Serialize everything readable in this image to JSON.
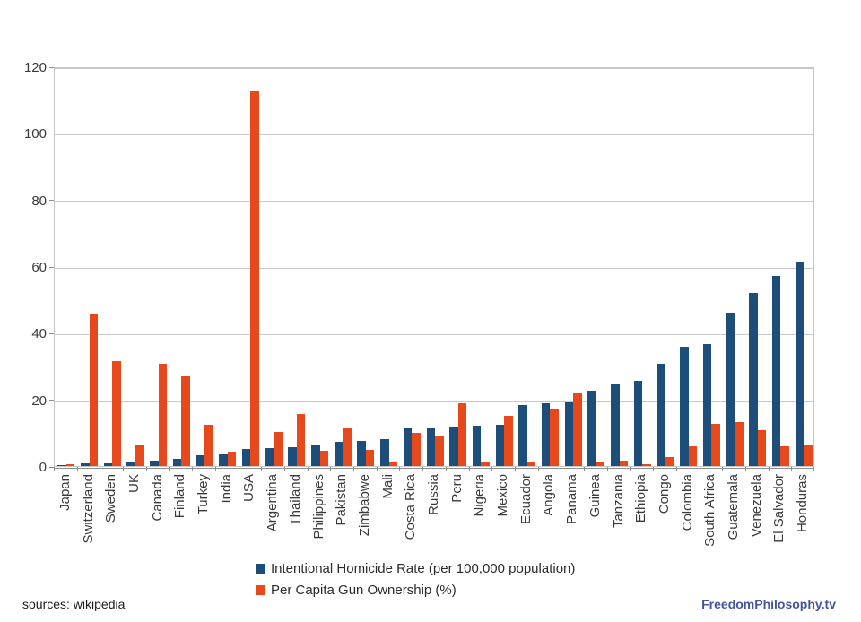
{
  "chart_data": {
    "type": "bar",
    "title": "",
    "xlabel": "",
    "ylabel": "",
    "ylim": [
      0,
      120
    ],
    "yticks": [
      0,
      20,
      40,
      60,
      80,
      100,
      120
    ],
    "grid": "horizontal",
    "legend_position": "bottom-center",
    "categories": [
      "Japan",
      "Switzerland",
      "Sweden",
      "UK",
      "Canada",
      "Finland",
      "Turkey",
      "India",
      "USA",
      "Argentina",
      "Thailand",
      "Philippines",
      "Pakistan",
      "Zimbabwe",
      "Mali",
      "Costa Rica",
      "Russia",
      "Peru",
      "Nigeria",
      "Mexico",
      "Ecuador",
      "Angola",
      "Panama",
      "Guinea",
      "Tanzania",
      "Ethiopia",
      "Congo",
      "Colombia",
      "South Africa",
      "Guatemala",
      "Venezuela",
      "El Salvador",
      "Honduras"
    ],
    "series": [
      {
        "name": "Intentional Homicide Rate (per 100,000 population)",
        "color": "#1d4e7a",
        "values": [
          0.3,
          0.7,
          0.9,
          1.2,
          1.6,
          2.2,
          3.3,
          3.5,
          5.0,
          5.5,
          5.7,
          6.4,
          7.2,
          7.6,
          8.0,
          11.3,
          11.5,
          11.8,
          12.0,
          12.4,
          18.2,
          18.8,
          19.2,
          22.6,
          24.5,
          25.5,
          30.8,
          35.9,
          36.6,
          46.0,
          52.0,
          57.0,
          61.3
        ]
      },
      {
        "name": "Per Capita Gun Ownership (%)",
        "color": "#e8491c",
        "values": [
          0.6,
          45.7,
          31.6,
          6.5,
          30.8,
          27.3,
          12.5,
          4.2,
          112.6,
          10.2,
          15.6,
          4.7,
          11.6,
          4.8,
          1.1,
          9.9,
          8.9,
          18.8,
          1.4,
          15.1,
          1.4,
          17.3,
          21.7,
          1.4,
          1.6,
          0.5,
          2.8,
          6.0,
          12.7,
          13.2,
          10.8,
          5.8,
          6.4
        ]
      }
    ]
  },
  "footer": {
    "source_note": "sources: wikipedia",
    "watermark": "FreedomPhilosophy.tv"
  }
}
